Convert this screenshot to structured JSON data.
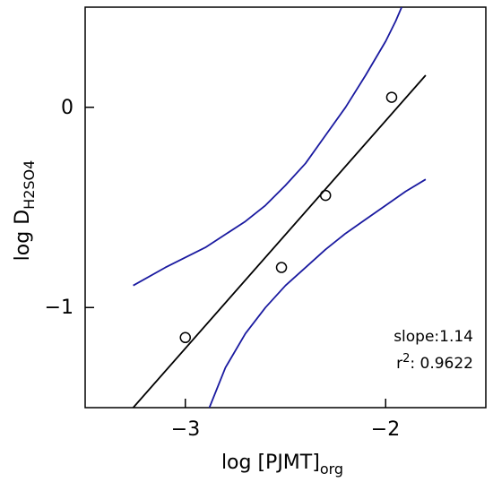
{
  "chart_data": {
    "type": "scatter",
    "title": "",
    "xlabel": {
      "main": "log [PJMT]",
      "sub": "org"
    },
    "ylabel": {
      "main": "log D",
      "sub": "H2SO4"
    },
    "xlim": [
      -3.5,
      -1.5
    ],
    "ylim": [
      -1.5,
      0.5
    ],
    "x_ticks": [
      -3,
      -2
    ],
    "x_tick_labels": [
      "−3",
      "−2"
    ],
    "y_ticks": [
      0,
      -1
    ],
    "y_tick_labels": [
      "0",
      "−1"
    ],
    "grid": false,
    "series": [
      {
        "kind": "points",
        "marker": "open-circle",
        "color": "#000000",
        "x": [
          -3.0,
          -2.52,
          -2.3,
          -1.97
        ],
        "y": [
          -1.15,
          -0.8,
          -0.44,
          0.05
        ]
      },
      {
        "kind": "fit-line",
        "color": "#000000",
        "x": [
          -3.26,
          -1.8
        ],
        "y": [
          -1.5,
          0.16
        ]
      },
      {
        "kind": "confidence-upper",
        "color": "#1a1aa0",
        "x": [
          -3.26,
          -3.1,
          -2.9,
          -2.7,
          -2.6,
          -2.5,
          -2.4,
          -2.3,
          -2.2,
          -2.1,
          -2.0,
          -1.95,
          -1.92
        ],
        "y": [
          -0.89,
          -0.8,
          -0.7,
          -0.57,
          -0.49,
          -0.39,
          -0.28,
          -0.14,
          0.0,
          0.16,
          0.33,
          0.43,
          0.5
        ]
      },
      {
        "kind": "confidence-lower",
        "color": "#1a1aa0",
        "x": [
          -2.88,
          -2.8,
          -2.7,
          -2.6,
          -2.5,
          -2.4,
          -2.3,
          -2.2,
          -2.1,
          -2.0,
          -1.9,
          -1.8
        ],
        "y": [
          -1.5,
          -1.3,
          -1.13,
          -1.0,
          -0.89,
          -0.8,
          -0.71,
          -0.63,
          -0.56,
          -0.49,
          -0.42,
          -0.36
        ]
      }
    ],
    "annotations": {
      "slope": "slope:1.14",
      "r2_prefix": "r",
      "r2_sup": "2",
      "r2_value": ":  0.9622"
    }
  }
}
